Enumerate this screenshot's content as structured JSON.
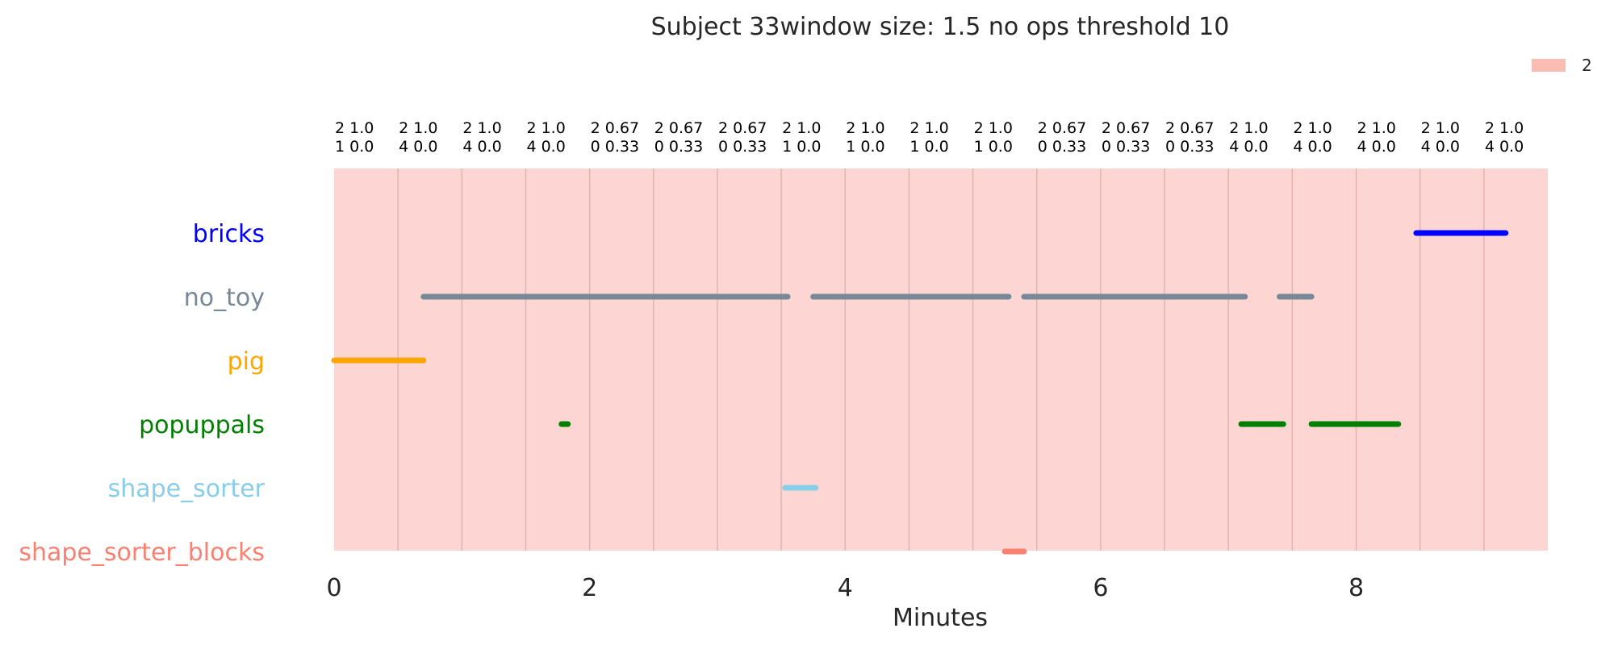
{
  "chart_data": {
    "type": "timeline",
    "title": "Subject 33window size: 1.5 no ops threshold 10",
    "xlabel": "Minutes",
    "xlim": [
      0,
      9.5
    ],
    "xticks": [
      0,
      2,
      4,
      6,
      8
    ],
    "xtick_labels": [
      "0",
      "2",
      "4",
      "6",
      "8"
    ],
    "grid": true,
    "legend": {
      "placement": "top-right",
      "entries": [
        {
          "label": "2",
          "color": "#f9bdb3"
        }
      ]
    },
    "background_band": {
      "start": 0,
      "end": 9.5,
      "label": "2",
      "color": "#fdd5d3"
    },
    "window_boundaries": [
      0,
      0.5,
      1,
      1.5,
      2,
      2.5,
      3,
      3.5,
      4,
      4.5,
      5,
      5.5,
      6,
      6.5,
      7,
      7.5,
      8,
      8.5,
      9
    ],
    "window_labels": [
      {
        "line1": "2 1.0",
        "line2": "1 0.0"
      },
      {
        "line1": "2 1.0",
        "line2": "4 0.0"
      },
      {
        "line1": "2 1.0",
        "line2": "4 0.0"
      },
      {
        "line1": "2 1.0",
        "line2": "4 0.0"
      },
      {
        "line1": "2 0.67",
        "line2": "0 0.33"
      },
      {
        "line1": "2 0.67",
        "line2": "0 0.33"
      },
      {
        "line1": "2 0.67",
        "line2": "0 0.33"
      },
      {
        "line1": "2 1.0",
        "line2": "1 0.0"
      },
      {
        "line1": "2 1.0",
        "line2": "1 0.0"
      },
      {
        "line1": "2 1.0",
        "line2": "1 0.0"
      },
      {
        "line1": "2 1.0",
        "line2": "1 0.0"
      },
      {
        "line1": "2 0.67",
        "line2": "0 0.33"
      },
      {
        "line1": "2 0.67",
        "line2": "0 0.33"
      },
      {
        "line1": "2 0.67",
        "line2": "0 0.33"
      },
      {
        "line1": "2 1.0",
        "line2": "4 0.0"
      },
      {
        "line1": "2 1.0",
        "line2": "4 0.0"
      },
      {
        "line1": "2 1.0",
        "line2": "4 0.0"
      },
      {
        "line1": "2 1.0",
        "line2": "4 0.0"
      },
      {
        "line1": "2 1.0",
        "line2": "4 0.0"
      }
    ],
    "rows": [
      {
        "label": "bricks",
        "color": "#0000ff",
        "segments": [
          [
            8.47,
            9.17
          ]
        ]
      },
      {
        "label": "no_toy",
        "color": "#778899",
        "segments": [
          [
            0.7,
            1.8
          ],
          [
            1.8,
            3.55
          ],
          [
            3.75,
            5.28
          ],
          [
            5.4,
            7.13
          ],
          [
            7.4,
            7.65
          ]
        ]
      },
      {
        "label": "pig",
        "color": "#ffa500",
        "segments": [
          [
            0.0,
            0.7
          ]
        ]
      },
      {
        "label": "popuppals",
        "color": "#008000",
        "segments": [
          [
            1.78,
            1.83
          ],
          [
            7.1,
            7.43
          ],
          [
            7.65,
            8.33
          ]
        ]
      },
      {
        "label": "shape_sorter",
        "color": "#87ceeb",
        "segments": [
          [
            3.53,
            3.77
          ]
        ]
      },
      {
        "label": "shape_sorter_blocks",
        "color": "#fa8072",
        "segments": [
          [
            5.25,
            5.4
          ]
        ]
      }
    ]
  }
}
